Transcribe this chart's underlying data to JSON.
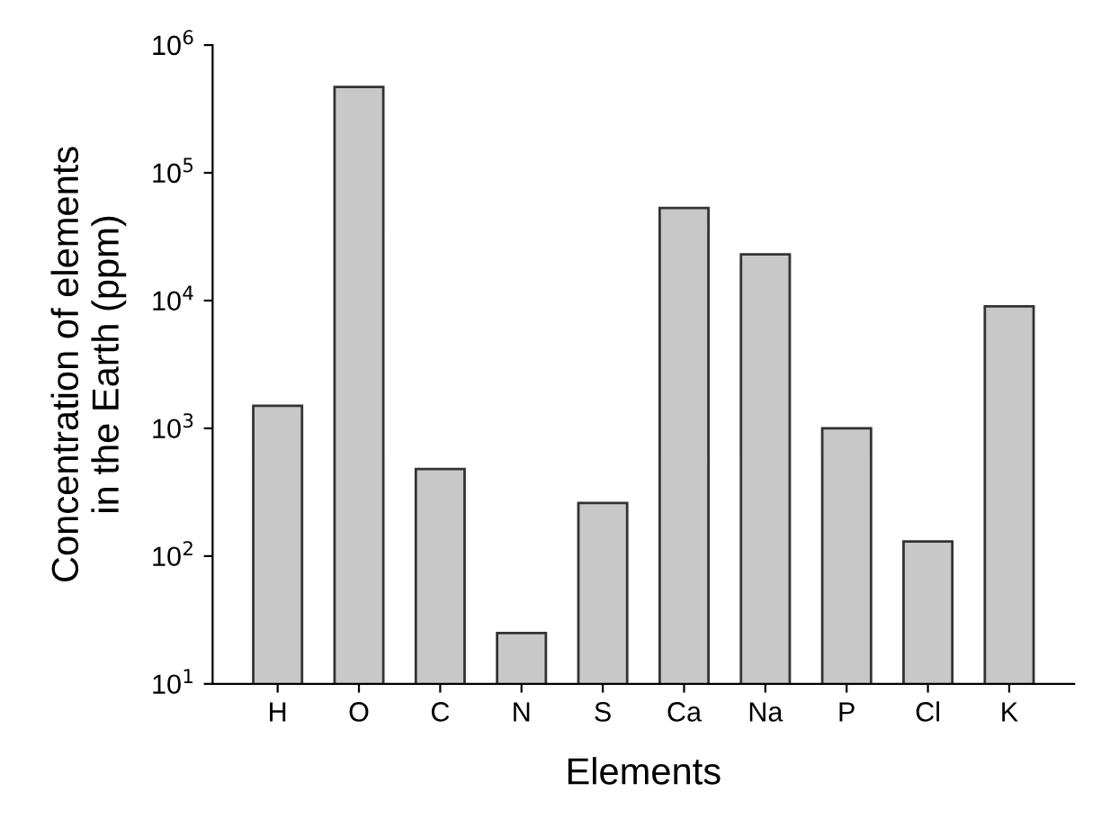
{
  "chart_data": {
    "type": "bar",
    "xlabel": "Elements",
    "ylabel": "Concentration of elements\nin the Earth (ppm)",
    "categories": [
      "H",
      "O",
      "C",
      "N",
      "S",
      "Ca",
      "Na",
      "P",
      "Cl",
      "K"
    ],
    "values": [
      1500,
      470000,
      480,
      25,
      260,
      53000,
      23000,
      1000,
      130,
      9000
    ],
    "color": "#c8c8c8",
    "log": true,
    "ylim": [
      10,
      1000000
    ],
    "yticks": [
      {
        "value": 10,
        "label": "10$^{1}$"
      },
      {
        "value": 100,
        "label": "10$^{2}$"
      },
      {
        "value": 1000,
        "label": "10$^{3}$"
      },
      {
        "value": 10000,
        "label": "10$^{4}$"
      },
      {
        "value": 100000,
        "label": "10$^{5}$"
      },
      {
        "value": 1000000,
        "label": "10$^{6}$"
      }
    ],
    "grid": false
  }
}
